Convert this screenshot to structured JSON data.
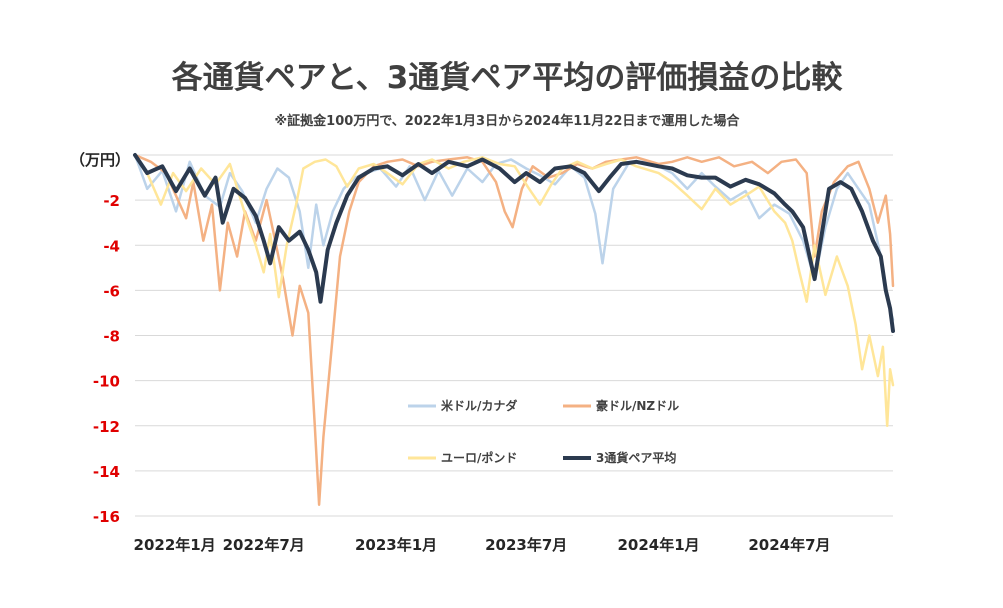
{
  "chart_data": {
    "type": "line",
    "title": "各通貨ペアと、3通貨ペア平均の評価損益の比較",
    "subtitle": "※証拠金100万円で、2022年1月3日から2024年11月22日まで運用した場合",
    "y_unit_label": "（万円）",
    "ylim": [
      -16,
      0
    ],
    "y_ticks": [
      0,
      -2,
      -4,
      -6,
      -8,
      -10,
      -12,
      -14,
      -16
    ],
    "y_tick_labels": [
      "",
      "-2",
      "-4",
      "-6",
      "-8",
      "-10",
      "-12",
      "-14",
      "-16"
    ],
    "x_range": [
      "2022-01-03",
      "2024-11-22"
    ],
    "x_ticks": [
      {
        "date": "2022-01-01",
        "label": "2022年1月"
      },
      {
        "date": "2022-07-01",
        "label": "2022年7月"
      },
      {
        "date": "2023-01-01",
        "label": "2023年1月"
      },
      {
        "date": "2023-07-01",
        "label": "2023年7月"
      },
      {
        "date": "2024-01-01",
        "label": "2024年1月"
      },
      {
        "date": "2024-07-01",
        "label": "2024年7月"
      }
    ],
    "grid": true,
    "legend_position": "center",
    "series": [
      {
        "name": "米ドル/カナダ",
        "color": "#bcd3ea",
        "points": [
          [
            "2022-01-03",
            0
          ],
          [
            "2022-01-20",
            -1.5
          ],
          [
            "2022-02-10",
            -0.7
          ],
          [
            "2022-03-01",
            -2.5
          ],
          [
            "2022-03-20",
            -0.3
          ],
          [
            "2022-04-10",
            -1.8
          ],
          [
            "2022-05-01",
            -2.3
          ],
          [
            "2022-05-15",
            -0.8
          ],
          [
            "2022-06-01",
            -1.6
          ],
          [
            "2022-06-20",
            -3.0
          ],
          [
            "2022-07-05",
            -1.5
          ],
          [
            "2022-07-20",
            -0.6
          ],
          [
            "2022-08-05",
            -1.0
          ],
          [
            "2022-08-20",
            -2.5
          ],
          [
            "2022-09-01",
            -5.0
          ],
          [
            "2022-09-12",
            -2.2
          ],
          [
            "2022-09-22",
            -4.0
          ],
          [
            "2022-10-05",
            -2.5
          ],
          [
            "2022-10-20",
            -1.5
          ],
          [
            "2022-11-05",
            -1.0
          ],
          [
            "2022-11-20",
            -0.8
          ],
          [
            "2022-12-10",
            -0.6
          ],
          [
            "2023-01-01",
            -1.4
          ],
          [
            "2023-01-20",
            -0.5
          ],
          [
            "2023-02-10",
            -2.0
          ],
          [
            "2023-03-01",
            -0.7
          ],
          [
            "2023-03-20",
            -1.8
          ],
          [
            "2023-04-10",
            -0.6
          ],
          [
            "2023-05-01",
            -1.2
          ],
          [
            "2023-05-20",
            -0.4
          ],
          [
            "2023-06-10",
            -0.2
          ],
          [
            "2023-07-01",
            -0.6
          ],
          [
            "2023-07-20",
            -0.9
          ],
          [
            "2023-08-10",
            -1.3
          ],
          [
            "2023-09-01",
            -0.5
          ],
          [
            "2023-09-20",
            -1.0
          ],
          [
            "2023-10-05",
            -2.6
          ],
          [
            "2023-10-15",
            -4.8
          ],
          [
            "2023-10-30",
            -1.5
          ],
          [
            "2023-11-20",
            -0.4
          ],
          [
            "2023-12-10",
            -0.3
          ],
          [
            "2024-01-01",
            -0.5
          ],
          [
            "2024-01-20",
            -0.8
          ],
          [
            "2024-02-10",
            -1.5
          ],
          [
            "2024-03-01",
            -0.8
          ],
          [
            "2024-03-20",
            -1.4
          ],
          [
            "2024-04-10",
            -2.0
          ],
          [
            "2024-05-01",
            -1.6
          ],
          [
            "2024-05-20",
            -2.8
          ],
          [
            "2024-06-10",
            -2.2
          ],
          [
            "2024-07-01",
            -2.6
          ],
          [
            "2024-07-20",
            -3.8
          ],
          [
            "2024-08-05",
            -5.5
          ],
          [
            "2024-08-20",
            -3.2
          ],
          [
            "2024-09-05",
            -1.5
          ],
          [
            "2024-09-20",
            -0.8
          ],
          [
            "2024-10-05",
            -1.5
          ],
          [
            "2024-10-20",
            -2.2
          ],
          [
            "2024-11-05",
            -4.5
          ],
          [
            "2024-11-15",
            -6.5
          ],
          [
            "2024-11-22",
            -7.3
          ]
        ]
      },
      {
        "name": "豪ドル/NZドル",
        "color": "#f4b183",
        "points": [
          [
            "2022-01-03",
            0
          ],
          [
            "2022-01-25",
            -0.3
          ],
          [
            "2022-02-15",
            -0.8
          ],
          [
            "2022-03-01",
            -1.8
          ],
          [
            "2022-03-15",
            -2.8
          ],
          [
            "2022-03-25",
            -1.2
          ],
          [
            "2022-04-08",
            -3.8
          ],
          [
            "2022-04-20",
            -2.2
          ],
          [
            "2022-05-01",
            -6.0
          ],
          [
            "2022-05-12",
            -3.0
          ],
          [
            "2022-05-25",
            -4.5
          ],
          [
            "2022-06-05",
            -2.5
          ],
          [
            "2022-06-20",
            -3.8
          ],
          [
            "2022-07-05",
            -2.0
          ],
          [
            "2022-07-15",
            -3.5
          ],
          [
            "2022-07-28",
            -5.5
          ],
          [
            "2022-08-10",
            -8.0
          ],
          [
            "2022-08-20",
            -5.8
          ],
          [
            "2022-09-01",
            -7.0
          ],
          [
            "2022-09-10",
            -12.0
          ],
          [
            "2022-09-16",
            -15.5
          ],
          [
            "2022-09-22",
            -12.5
          ],
          [
            "2022-10-05",
            -8.0
          ],
          [
            "2022-10-15",
            -4.5
          ],
          [
            "2022-10-28",
            -2.5
          ],
          [
            "2022-11-10",
            -1.2
          ],
          [
            "2022-12-01",
            -0.5
          ],
          [
            "2022-12-20",
            -0.3
          ],
          [
            "2023-01-10",
            -0.2
          ],
          [
            "2023-02-01",
            -0.5
          ],
          [
            "2023-02-20",
            -0.3
          ],
          [
            "2023-03-15",
            -0.2
          ],
          [
            "2023-04-10",
            -0.1
          ],
          [
            "2023-05-01",
            -0.3
          ],
          [
            "2023-05-20",
            -1.2
          ],
          [
            "2023-06-01",
            -2.5
          ],
          [
            "2023-06-12",
            -3.2
          ],
          [
            "2023-06-25",
            -1.5
          ],
          [
            "2023-07-10",
            -0.5
          ],
          [
            "2023-08-01",
            -1.0
          ],
          [
            "2023-08-20",
            -0.8
          ],
          [
            "2023-09-10",
            -0.4
          ],
          [
            "2023-10-01",
            -0.6
          ],
          [
            "2023-10-20",
            -0.3
          ],
          [
            "2023-11-10",
            -0.2
          ],
          [
            "2023-12-01",
            -0.1
          ],
          [
            "2024-01-01",
            -0.4
          ],
          [
            "2024-01-20",
            -0.3
          ],
          [
            "2024-02-10",
            -0.1
          ],
          [
            "2024-03-01",
            -0.3
          ],
          [
            "2024-03-25",
            -0.1
          ],
          [
            "2024-04-15",
            -0.5
          ],
          [
            "2024-05-10",
            -0.3
          ],
          [
            "2024-06-01",
            -0.8
          ],
          [
            "2024-06-20",
            -0.3
          ],
          [
            "2024-07-10",
            -0.2
          ],
          [
            "2024-07-25",
            -0.8
          ],
          [
            "2024-08-05",
            -4.5
          ],
          [
            "2024-08-15",
            -2.5
          ],
          [
            "2024-09-01",
            -1.2
          ],
          [
            "2024-09-20",
            -0.5
          ],
          [
            "2024-10-05",
            -0.3
          ],
          [
            "2024-10-20",
            -1.5
          ],
          [
            "2024-11-01",
            -3.0
          ],
          [
            "2024-11-12",
            -1.8
          ],
          [
            "2024-11-18",
            -3.5
          ],
          [
            "2024-11-22",
            -5.8
          ]
        ]
      },
      {
        "name": "ユーロ/ポンド",
        "color": "#ffe699",
        "points": [
          [
            "2022-01-03",
            0
          ],
          [
            "2022-01-20",
            -0.8
          ],
          [
            "2022-02-08",
            -2.2
          ],
          [
            "2022-02-25",
            -0.8
          ],
          [
            "2022-03-15",
            -1.6
          ],
          [
            "2022-04-05",
            -0.6
          ],
          [
            "2022-04-25",
            -1.3
          ],
          [
            "2022-05-15",
            -0.4
          ],
          [
            "2022-06-05",
            -2.6
          ],
          [
            "2022-06-20",
            -4.0
          ],
          [
            "2022-07-01",
            -5.2
          ],
          [
            "2022-07-10",
            -3.5
          ],
          [
            "2022-07-22",
            -6.3
          ],
          [
            "2022-08-02",
            -4.0
          ],
          [
            "2022-08-15",
            -2.2
          ],
          [
            "2022-08-25",
            -0.6
          ],
          [
            "2022-09-10",
            -0.3
          ],
          [
            "2022-09-25",
            -0.2
          ],
          [
            "2022-10-10",
            -0.5
          ],
          [
            "2022-10-25",
            -1.4
          ],
          [
            "2022-11-10",
            -0.6
          ],
          [
            "2022-12-01",
            -0.4
          ],
          [
            "2022-12-20",
            -0.8
          ],
          [
            "2023-01-10",
            -1.3
          ],
          [
            "2023-02-01",
            -0.4
          ],
          [
            "2023-02-20",
            -0.2
          ],
          [
            "2023-03-15",
            -0.6
          ],
          [
            "2023-04-05",
            -0.3
          ],
          [
            "2023-05-01",
            -0.1
          ],
          [
            "2023-05-25",
            -0.4
          ],
          [
            "2023-06-15",
            -0.5
          ],
          [
            "2023-07-05",
            -1.5
          ],
          [
            "2023-07-20",
            -2.2
          ],
          [
            "2023-08-05",
            -1.3
          ],
          [
            "2023-08-20",
            -0.6
          ],
          [
            "2023-09-10",
            -0.3
          ],
          [
            "2023-10-01",
            -0.6
          ],
          [
            "2023-10-20",
            -0.4
          ],
          [
            "2023-11-10",
            -0.2
          ],
          [
            "2023-12-01",
            -0.5
          ],
          [
            "2024-01-01",
            -0.8
          ],
          [
            "2024-01-20",
            -1.2
          ],
          [
            "2024-02-10",
            -1.8
          ],
          [
            "2024-03-01",
            -2.4
          ],
          [
            "2024-03-20",
            -1.5
          ],
          [
            "2024-04-10",
            -2.2
          ],
          [
            "2024-05-01",
            -1.8
          ],
          [
            "2024-05-20",
            -1.4
          ],
          [
            "2024-06-10",
            -2.5
          ],
          [
            "2024-06-25",
            -3.0
          ],
          [
            "2024-07-05",
            -3.8
          ],
          [
            "2024-07-15",
            -5.2
          ],
          [
            "2024-07-25",
            -6.5
          ],
          [
            "2024-08-05",
            -4.0
          ],
          [
            "2024-08-20",
            -6.2
          ],
          [
            "2024-09-05",
            -4.5
          ],
          [
            "2024-09-20",
            -5.8
          ],
          [
            "2024-10-01",
            -7.5
          ],
          [
            "2024-10-10",
            -9.5
          ],
          [
            "2024-10-20",
            -8.0
          ],
          [
            "2024-11-01",
            -9.8
          ],
          [
            "2024-11-08",
            -8.5
          ],
          [
            "2024-11-14",
            -12.0
          ],
          [
            "2024-11-18",
            -9.5
          ],
          [
            "2024-11-22",
            -10.2
          ]
        ]
      },
      {
        "name": "3通貨ペア平均",
        "color": "#2b3a4f",
        "points": [
          [
            "2022-01-03",
            0
          ],
          [
            "2022-01-20",
            -0.8
          ],
          [
            "2022-02-10",
            -0.5
          ],
          [
            "2022-03-01",
            -1.6
          ],
          [
            "2022-03-20",
            -0.6
          ],
          [
            "2022-04-10",
            -1.8
          ],
          [
            "2022-04-25",
            -1.0
          ],
          [
            "2022-05-05",
            -3.0
          ],
          [
            "2022-05-20",
            -1.5
          ],
          [
            "2022-06-05",
            -1.9
          ],
          [
            "2022-06-20",
            -2.7
          ],
          [
            "2022-07-01",
            -3.8
          ],
          [
            "2022-07-10",
            -4.8
          ],
          [
            "2022-07-22",
            -3.2
          ],
          [
            "2022-08-05",
            -3.8
          ],
          [
            "2022-08-20",
            -3.4
          ],
          [
            "2022-09-01",
            -4.2
          ],
          [
            "2022-09-12",
            -5.2
          ],
          [
            "2022-09-18",
            -6.5
          ],
          [
            "2022-09-28",
            -4.2
          ],
          [
            "2022-10-10",
            -3.0
          ],
          [
            "2022-10-25",
            -1.8
          ],
          [
            "2022-11-10",
            -1.0
          ],
          [
            "2022-12-01",
            -0.6
          ],
          [
            "2022-12-20",
            -0.5
          ],
          [
            "2023-01-10",
            -0.9
          ],
          [
            "2023-02-01",
            -0.4
          ],
          [
            "2023-02-20",
            -0.8
          ],
          [
            "2023-03-15",
            -0.3
          ],
          [
            "2023-04-10",
            -0.5
          ],
          [
            "2023-05-01",
            -0.2
          ],
          [
            "2023-05-25",
            -0.6
          ],
          [
            "2023-06-15",
            -1.2
          ],
          [
            "2023-07-01",
            -0.8
          ],
          [
            "2023-07-20",
            -1.2
          ],
          [
            "2023-08-10",
            -0.6
          ],
          [
            "2023-09-01",
            -0.5
          ],
          [
            "2023-09-20",
            -0.8
          ],
          [
            "2023-10-10",
            -1.6
          ],
          [
            "2023-10-25",
            -1.0
          ],
          [
            "2023-11-10",
            -0.4
          ],
          [
            "2023-12-01",
            -0.3
          ],
          [
            "2024-01-01",
            -0.5
          ],
          [
            "2024-01-20",
            -0.6
          ],
          [
            "2024-02-10",
            -0.9
          ],
          [
            "2024-03-01",
            -1.0
          ],
          [
            "2024-03-20",
            -1.0
          ],
          [
            "2024-04-10",
            -1.4
          ],
          [
            "2024-05-01",
            -1.1
          ],
          [
            "2024-05-20",
            -1.3
          ],
          [
            "2024-06-10",
            -1.7
          ],
          [
            "2024-06-25",
            -2.2
          ],
          [
            "2024-07-05",
            -2.5
          ],
          [
            "2024-07-20",
            -3.2
          ],
          [
            "2024-08-05",
            -5.5
          ],
          [
            "2024-08-15",
            -3.5
          ],
          [
            "2024-08-25",
            -1.5
          ],
          [
            "2024-09-10",
            -1.2
          ],
          [
            "2024-09-25",
            -1.5
          ],
          [
            "2024-10-10",
            -2.5
          ],
          [
            "2024-10-25",
            -3.8
          ],
          [
            "2024-11-05",
            -4.5
          ],
          [
            "2024-11-12",
            -6.0
          ],
          [
            "2024-11-18",
            -6.8
          ],
          [
            "2024-11-22",
            -7.8
          ]
        ]
      }
    ]
  }
}
